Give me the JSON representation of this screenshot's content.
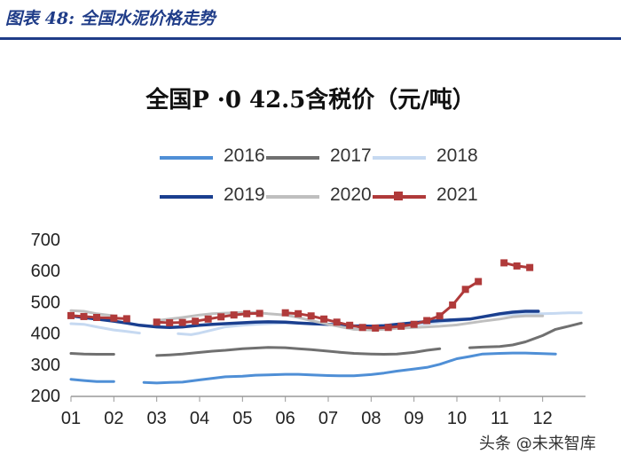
{
  "header": {
    "text": "图表 48:  全国水泥价格走势"
  },
  "watermark": {
    "text": "头条 @未来智库"
  },
  "colors": {
    "header": "#1f3c88",
    "2016": "#4f8fd6",
    "2017": "#707070",
    "2018": "#c6d9f1",
    "2019": "#1a3f8f",
    "2020": "#bfbfbf",
    "2021": "#b03a3a"
  },
  "chart_data": {
    "type": "line",
    "title": "全国P ·0 42.5含税价（元/吨）",
    "x_ticks": [
      "01",
      "02",
      "03",
      "04",
      "05",
      "06",
      "07",
      "08",
      "09",
      "10",
      "11",
      "12"
    ],
    "ylim": [
      200,
      700
    ],
    "y_ticks": [
      "200",
      "300",
      "400",
      "500",
      "600",
      "700"
    ],
    "grid": false,
    "legend_position": "top",
    "series": [
      {
        "name": "2016",
        "x": [
          1,
          1.3,
          1.6,
          2,
          2.2,
          2.4,
          2.7,
          3,
          3.3,
          3.6,
          4,
          4.3,
          4.6,
          5,
          5.3,
          5.6,
          6,
          6.3,
          6.6,
          7,
          7.3,
          7.6,
          8,
          8.3,
          8.6,
          9,
          9.3,
          9.6,
          10,
          10.3,
          10.6,
          11,
          11.3,
          11.6,
          12,
          12.3
        ],
        "values": [
          252,
          248,
          245,
          245,
          null,
          null,
          242,
          240,
          242,
          243,
          250,
          255,
          260,
          262,
          265,
          266,
          268,
          268,
          266,
          264,
          263,
          263,
          267,
          272,
          278,
          285,
          290,
          300,
          318,
          325,
          333,
          335,
          336,
          336,
          334,
          333
        ]
      },
      {
        "name": "2017",
        "x": [
          1,
          1.3,
          1.6,
          2,
          2.3,
          2.6,
          3,
          3.3,
          3.6,
          4,
          4.3,
          4.6,
          5,
          5.3,
          5.6,
          6,
          6.3,
          6.6,
          7,
          7.3,
          7.6,
          8,
          8.3,
          8.6,
          9,
          9.3,
          9.6,
          10,
          10.3,
          10.6,
          11,
          11.3,
          11.6,
          12,
          12.3,
          12.6,
          12.9
        ],
        "values": [
          335,
          333,
          332,
          332,
          null,
          null,
          328,
          330,
          333,
          338,
          342,
          345,
          350,
          352,
          354,
          353,
          350,
          347,
          342,
          338,
          335,
          333,
          332,
          333,
          338,
          345,
          350,
          null,
          353,
          355,
          357,
          362,
          372,
          392,
          412,
          422,
          432
        ]
      },
      {
        "name": "2018",
        "x": [
          1,
          1.3,
          1.6,
          2,
          2.3,
          2.6,
          2.9,
          3.2,
          3.5,
          3.8,
          4,
          4.3,
          4.6,
          5,
          5.3,
          5.6,
          6,
          6.3,
          6.6,
          7,
          7.3,
          7.6,
          8,
          8.3,
          8.6,
          9,
          9.3,
          9.6,
          10,
          10.3,
          10.6,
          11,
          11.3,
          11.6,
          12,
          12.3,
          12.6,
          12.9
        ],
        "values": [
          430,
          428,
          420,
          410,
          405,
          400,
          null,
          null,
          398,
          395,
          400,
          410,
          420,
          425,
          428,
          430,
          432,
          432,
          430,
          428,
          425,
          423,
          422,
          423,
          425,
          428,
          430,
          435,
          440,
          445,
          452,
          458,
          460,
          462,
          462,
          463,
          465,
          465
        ]
      },
      {
        "name": "2019",
        "x": [
          1,
          1.3,
          1.6,
          2,
          2.3,
          2.6,
          3,
          3.3,
          3.6,
          4,
          4.3,
          4.6,
          5,
          5.3,
          5.6,
          6,
          6.3,
          6.6,
          7,
          7.3,
          7.6,
          8,
          8.3,
          8.6,
          9,
          9.3,
          9.6,
          10,
          10.3,
          10.6,
          11,
          11.3,
          11.6,
          11.9
        ],
        "values": [
          455,
          450,
          445,
          438,
          432,
          425,
          420,
          418,
          420,
          425,
          428,
          430,
          433,
          435,
          436,
          435,
          432,
          430,
          428,
          425,
          423,
          422,
          424,
          428,
          433,
          437,
          440,
          443,
          445,
          452,
          462,
          467,
          470,
          470
        ]
      },
      {
        "name": "2020",
        "x": [
          1,
          1.3,
          1.6,
          2,
          2.3,
          2.6,
          3,
          3.3,
          3.6,
          4,
          4.3,
          4.6,
          5,
          5.3,
          5.6,
          6,
          6.3,
          6.6,
          7,
          7.3,
          7.6,
          8,
          8.3,
          8.6,
          9,
          9.3,
          9.6,
          10,
          10.3,
          10.6,
          11,
          11.3,
          11.6,
          12
        ],
        "values": [
          472,
          470,
          462,
          455,
          null,
          null,
          440,
          445,
          450,
          458,
          462,
          464,
          466,
          466,
          462,
          458,
          450,
          440,
          428,
          420,
          412,
          410,
          412,
          415,
          418,
          420,
          422,
          426,
          432,
          438,
          445,
          452,
          455,
          455
        ]
      },
      {
        "name": "2021",
        "x": [
          1,
          1.3,
          1.6,
          2,
          2.3,
          2.6,
          3,
          3.3,
          3.6,
          3.9,
          4.2,
          4.5,
          4.8,
          5.1,
          5.4,
          5.7,
          6,
          6.3,
          6.6,
          6.9,
          7.2,
          7.5,
          7.8,
          8.1,
          8.4,
          8.7,
          9,
          9.3,
          9.6,
          9.9,
          10.2,
          10.5,
          10.8,
          11.1,
          11.4,
          11.7
        ],
        "values": [
          456,
          453,
          450,
          448,
          446,
          null,
          435,
          433,
          434,
          438,
          445,
          452,
          458,
          462,
          463,
          null,
          465,
          462,
          455,
          445,
          435,
          425,
          418,
          416,
          418,
          422,
          428,
          440,
          455,
          490,
          540,
          565,
          null,
          625,
          615,
          610
        ]
      }
    ]
  }
}
